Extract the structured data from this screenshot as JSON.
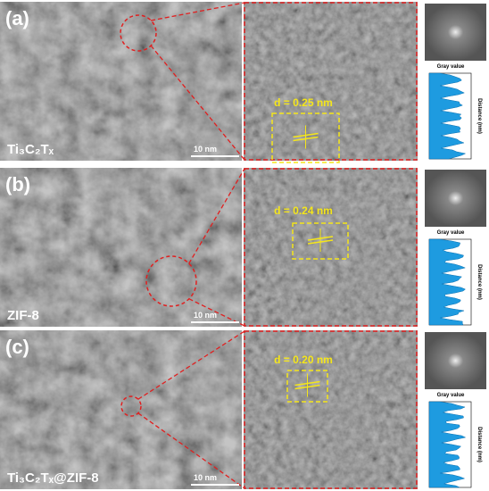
{
  "panels": [
    {
      "label": "(a)",
      "sample": "Ti₃C₂Tₓ",
      "scale_bar": "10 nm",
      "d_spacing": "d = 0.25 nm",
      "profile_x_label": "Gray value",
      "profile_y_label": "Distance (nm)"
    },
    {
      "label": "(b)",
      "sample": "ZIF-8",
      "scale_bar": "10 nm",
      "d_spacing": "d = 0.24 nm",
      "profile_x_label": "Gray value",
      "profile_y_label": "Distance (nm)"
    },
    {
      "label": "(c)",
      "sample": "Ti₃C₂Tₓ@ZIF-8",
      "scale_bar": "10 nm",
      "d_spacing": "d = 0.20 nm",
      "profile_x_label": "Gray value",
      "profile_y_label": "Distance (nm)"
    }
  ]
}
